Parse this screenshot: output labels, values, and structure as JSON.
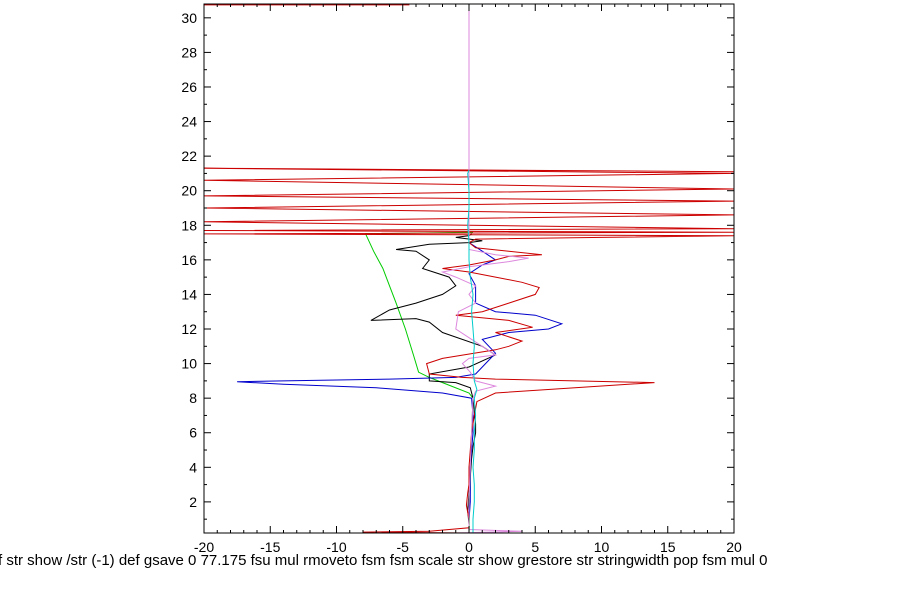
{
  "chart_data": {
    "type": "line",
    "xlim": [
      -20,
      20
    ],
    "ylim": [
      0.2,
      30.8
    ],
    "x_ticks": [
      -20,
      -15,
      -10,
      -5,
      0,
      5,
      10,
      15,
      20
    ],
    "x_tick_labels": [
      "-20",
      "-15",
      "-10",
      "-5",
      "0",
      "5",
      "10",
      "15",
      "20"
    ],
    "y_ticks": [
      2,
      4,
      6,
      8,
      10,
      12,
      14,
      16,
      18,
      20,
      22,
      24,
      26,
      28,
      30
    ],
    "y_tick_labels": [
      "2",
      "4",
      "6",
      "8",
      "10",
      "12",
      "14",
      "16",
      "18",
      "20",
      "22",
      "24",
      "26",
      "28",
      "30"
    ],
    "grid": false,
    "series": [
      {
        "color": "#00cc00",
        "points": [
          [
            0.0,
            0.2
          ],
          [
            0.1,
            3
          ],
          [
            0.2,
            6
          ],
          [
            0.3,
            8
          ],
          [
            0,
            8.3
          ],
          [
            -2,
            8.9
          ],
          [
            -3,
            9.2
          ],
          [
            -3.8,
            9.5
          ],
          [
            -4.2,
            10.5
          ],
          [
            -4.8,
            12
          ],
          [
            -5.5,
            13.5
          ],
          [
            -6,
            14.5
          ],
          [
            -6.5,
            15.5
          ],
          [
            -7.2,
            16.5
          ],
          [
            -7.8,
            17.5
          ],
          [
            -4,
            17.55
          ],
          [
            0,
            17.6
          ],
          [
            0.3,
            17.6
          ]
        ]
      },
      {
        "color": "#000000",
        "points": [
          [
            0,
            0.2
          ],
          [
            0,
            0.7
          ],
          [
            -0.1,
            1.5
          ],
          [
            0,
            2.5
          ],
          [
            0.1,
            3.5
          ],
          [
            0.2,
            4.5
          ],
          [
            0.3,
            5.2
          ],
          [
            0.5,
            6
          ],
          [
            0.5,
            6.5
          ],
          [
            0.4,
            7.2
          ],
          [
            0.3,
            8
          ],
          [
            0.1,
            8.6
          ],
          [
            -1,
            8.9
          ],
          [
            -3,
            9.0
          ],
          [
            -3,
            9.4
          ],
          [
            0,
            9.8
          ],
          [
            2,
            10.5
          ],
          [
            1,
            11
          ],
          [
            -2,
            11.8
          ],
          [
            -3,
            12.4
          ],
          [
            -4,
            12.6
          ],
          [
            -7.4,
            12.5
          ],
          [
            -6,
            13.1
          ],
          [
            -4,
            13.5
          ],
          [
            -2,
            14
          ],
          [
            -1,
            14.5
          ],
          [
            -1.5,
            15.0
          ],
          [
            -3.5,
            15.5
          ],
          [
            -3,
            16.0
          ],
          [
            -4,
            16.5
          ],
          [
            -5.5,
            16.6
          ],
          [
            -3,
            16.9
          ],
          [
            0,
            17.0
          ],
          [
            1,
            17.1
          ],
          [
            -1,
            17.3
          ],
          [
            0,
            17.4
          ],
          [
            0.2,
            17.5
          ]
        ]
      },
      {
        "color": "#0000cc",
        "points": [
          [
            0,
            0.2
          ],
          [
            0,
            1
          ],
          [
            0.1,
            2
          ],
          [
            0.1,
            3
          ],
          [
            0.1,
            4
          ],
          [
            0.2,
            5
          ],
          [
            0.3,
            6
          ],
          [
            0.3,
            7
          ],
          [
            0.2,
            8
          ],
          [
            -2,
            8.3
          ],
          [
            -7,
            8.6
          ],
          [
            -14,
            8.8
          ],
          [
            -17.5,
            8.95
          ],
          [
            -14,
            9.0
          ],
          [
            -6,
            9.1
          ],
          [
            -1,
            9.2
          ],
          [
            0.5,
            9.4
          ],
          [
            1,
            9.8
          ],
          [
            2,
            10.6
          ],
          [
            1,
            11.4
          ],
          [
            3,
            11.8
          ],
          [
            6,
            12.0
          ],
          [
            7,
            12.3
          ],
          [
            5,
            12.8
          ],
          [
            2,
            13.0
          ],
          [
            0.5,
            13.5
          ],
          [
            0.5,
            14.5
          ],
          [
            0,
            15.2
          ],
          [
            1,
            15.7
          ],
          [
            2,
            16.0
          ],
          [
            1,
            16.5
          ],
          [
            0,
            17.0
          ],
          [
            0,
            17.3
          ]
        ]
      },
      {
        "color": "#cc0000",
        "points": [
          [
            0,
            0.2
          ],
          [
            -8,
            0.25
          ],
          [
            -3,
            0.3
          ],
          [
            0,
            0.5
          ],
          [
            0,
            1
          ],
          [
            -0.2,
            1.8
          ],
          [
            -0.1,
            2.5
          ],
          [
            0,
            3
          ],
          [
            0,
            4
          ],
          [
            0.1,
            5
          ],
          [
            0.2,
            6
          ],
          [
            0.4,
            7
          ],
          [
            0.6,
            7.8
          ],
          [
            2,
            8.3
          ],
          [
            8,
            8.6
          ],
          [
            14,
            8.9
          ],
          [
            8,
            9.0
          ],
          [
            2,
            9.1
          ],
          [
            -0.5,
            9.2
          ],
          [
            -3,
            9.4
          ],
          [
            -3.2,
            10
          ],
          [
            -2,
            10.3
          ],
          [
            2,
            10.8
          ],
          [
            3,
            11.0
          ],
          [
            4,
            11.3
          ],
          [
            2,
            11.8
          ],
          [
            4.8,
            12.1
          ],
          [
            3,
            12.5
          ],
          [
            -1,
            12.8
          ],
          [
            1,
            13.0
          ],
          [
            3,
            13.5
          ],
          [
            5,
            14
          ],
          [
            5.3,
            14.4
          ],
          [
            4,
            14.7
          ],
          [
            2,
            15.0
          ],
          [
            0,
            15.3
          ],
          [
            -2,
            15.5
          ],
          [
            0,
            15.7
          ],
          [
            2,
            16.0
          ],
          [
            3,
            16.2
          ],
          [
            5.5,
            16.3
          ],
          [
            3,
            16.5
          ],
          [
            0.5,
            16.7
          ],
          [
            0,
            17
          ],
          [
            0.5,
            17.2
          ],
          [
            10,
            17.3
          ],
          [
            20,
            17.4
          ],
          [
            -20,
            17.5
          ],
          [
            20,
            17.6
          ],
          [
            -20,
            17.7
          ],
          [
            20,
            17.8
          ],
          [
            -20,
            18.2
          ],
          [
            20,
            18.6
          ],
          [
            -20,
            19.0
          ],
          [
            20,
            19.4
          ],
          [
            -20,
            19.7
          ],
          [
            20,
            20.1
          ],
          [
            -20,
            20.6
          ],
          [
            20,
            21.0
          ],
          [
            -20,
            21.3
          ],
          [
            20,
            21.1
          ]
        ]
      },
      {
        "color": "#dd88dd",
        "points": [
          [
            -1,
            0.2
          ],
          [
            4,
            0.3
          ],
          [
            0,
            0.4
          ],
          [
            0,
            2
          ],
          [
            0.1,
            4
          ],
          [
            0.2,
            6
          ],
          [
            0.3,
            8
          ],
          [
            0.5,
            8.4
          ],
          [
            2,
            8.7
          ],
          [
            0.5,
            9.0
          ],
          [
            0.1,
            9.5
          ],
          [
            -0.5,
            10
          ],
          [
            0,
            10.3
          ],
          [
            2,
            10.5
          ],
          [
            1,
            11
          ],
          [
            0,
            11.5
          ],
          [
            -1,
            12
          ],
          [
            -0.8,
            13
          ],
          [
            0.5,
            13.5
          ],
          [
            0,
            14
          ],
          [
            0.5,
            14.5
          ],
          [
            -1,
            15
          ],
          [
            -2,
            15.3
          ],
          [
            0,
            15.6
          ],
          [
            3,
            15.9
          ],
          [
            4.5,
            16.1
          ],
          [
            2,
            16.3
          ],
          [
            0,
            16.6
          ],
          [
            0,
            17
          ],
          [
            0,
            18
          ],
          [
            0,
            20
          ],
          [
            0,
            22
          ],
          [
            0,
            24
          ],
          [
            0,
            26
          ],
          [
            0,
            28
          ],
          [
            0,
            30.8
          ]
        ]
      },
      {
        "color": "#00cccc",
        "points": [
          [
            0.3,
            0.2
          ],
          [
            0.3,
            1
          ],
          [
            0.4,
            2
          ],
          [
            0.4,
            3
          ],
          [
            0.3,
            4
          ],
          [
            0.4,
            5
          ],
          [
            0.4,
            6
          ],
          [
            0.5,
            7
          ],
          [
            0.4,
            8
          ],
          [
            0.6,
            8.5
          ],
          [
            0.4,
            9
          ],
          [
            0.3,
            10
          ],
          [
            0.4,
            11
          ],
          [
            0.3,
            12
          ],
          [
            0.2,
            13
          ],
          [
            0.3,
            14
          ],
          [
            0.1,
            15
          ],
          [
            0.0,
            16
          ],
          [
            0.0,
            17
          ],
          [
            -0.1,
            18
          ],
          [
            0.0,
            19
          ],
          [
            0.0,
            20
          ],
          [
            -0.1,
            21
          ],
          [
            0.0,
            21.2
          ]
        ]
      },
      {
        "color": "#cc0000",
        "points": [
          [
            -20,
            30.75
          ],
          [
            -4.5,
            30.75
          ]
        ]
      }
    ]
  },
  "footer": {
    "text": "f str show /str (-1) def gsave 0 77.175 fsu mul rmoveto fsm fsm scale str show grestore str stringwidth pop fsm mul 0"
  }
}
